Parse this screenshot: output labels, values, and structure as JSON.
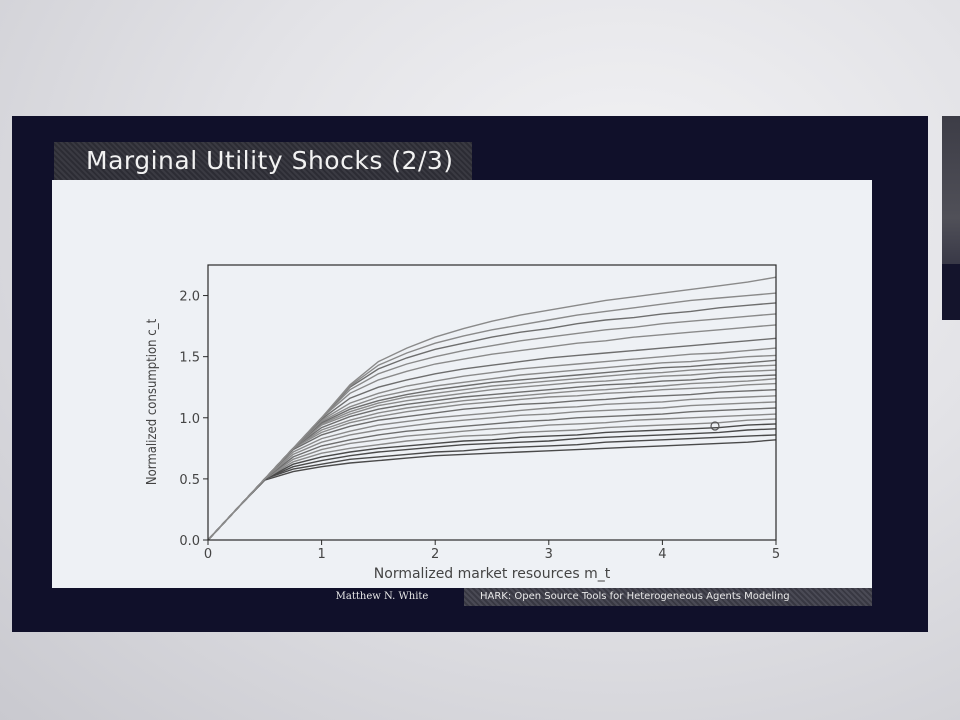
{
  "slide": {
    "title": "Marginal Utility Shocks (2/3)",
    "footer_author": "Matthew N. White",
    "footer_talk": "HARK: Open Source Tools for Heterogeneous Agents Modeling"
  },
  "colors": {
    "slide_background": "#10102a",
    "content_background": "#eef1f5",
    "curve_color": "#7a7a7a",
    "accent_dark": "#2a2a2a"
  },
  "chart_data": {
    "type": "line",
    "title": "",
    "xlabel": "Normalized market resources m_t",
    "ylabel": "Normalized consumption c_t",
    "xlim": [
      0,
      5
    ],
    "ylim": [
      0,
      2.25
    ],
    "xticks": [
      "0",
      "1",
      "2",
      "3",
      "4",
      "5"
    ],
    "yticks": [
      "0.0",
      "0.5",
      "1.0",
      "1.5",
      "2.0"
    ],
    "grid": false,
    "legend": "none",
    "x": [
      0,
      0.25,
      0.5,
      0.75,
      1.0,
      1.25,
      1.5,
      1.75,
      2.0,
      2.25,
      2.5,
      2.75,
      3.0,
      3.25,
      3.5,
      3.75,
      4.0,
      4.25,
      4.5,
      4.75,
      5.0
    ],
    "series": [
      {
        "values": [
          0.0,
          0.25,
          0.49,
          0.56,
          0.6,
          0.63,
          0.65,
          0.67,
          0.69,
          0.7,
          0.71,
          0.72,
          0.73,
          0.74,
          0.75,
          0.76,
          0.77,
          0.78,
          0.79,
          0.8,
          0.82
        ]
      },
      {
        "values": [
          0.0,
          0.25,
          0.5,
          0.58,
          0.62,
          0.66,
          0.68,
          0.7,
          0.72,
          0.73,
          0.75,
          0.76,
          0.77,
          0.78,
          0.8,
          0.81,
          0.82,
          0.83,
          0.84,
          0.85,
          0.86
        ]
      },
      {
        "values": [
          0.0,
          0.25,
          0.5,
          0.6,
          0.65,
          0.69,
          0.72,
          0.74,
          0.76,
          0.78,
          0.79,
          0.8,
          0.81,
          0.83,
          0.84,
          0.85,
          0.86,
          0.87,
          0.88,
          0.9,
          0.91
        ]
      },
      {
        "values": [
          0.0,
          0.25,
          0.5,
          0.62,
          0.68,
          0.72,
          0.75,
          0.77,
          0.79,
          0.81,
          0.82,
          0.84,
          0.85,
          0.86,
          0.88,
          0.89,
          0.9,
          0.91,
          0.92,
          0.94,
          0.95
        ]
      },
      {
        "values": [
          0.0,
          0.25,
          0.5,
          0.64,
          0.71,
          0.75,
          0.78,
          0.81,
          0.83,
          0.85,
          0.86,
          0.88,
          0.89,
          0.9,
          0.92,
          0.93,
          0.94,
          0.95,
          0.96,
          0.98,
          0.99
        ]
      },
      {
        "values": [
          0.0,
          0.25,
          0.5,
          0.66,
          0.74,
          0.79,
          0.82,
          0.85,
          0.87,
          0.89,
          0.91,
          0.92,
          0.94,
          0.95,
          0.96,
          0.98,
          0.99,
          1.0,
          1.01,
          1.02,
          1.03
        ]
      },
      {
        "values": [
          0.0,
          0.25,
          0.5,
          0.68,
          0.77,
          0.82,
          0.86,
          0.89,
          0.91,
          0.93,
          0.95,
          0.97,
          0.98,
          1.0,
          1.01,
          1.02,
          1.03,
          1.05,
          1.06,
          1.07,
          1.08
        ]
      },
      {
        "values": [
          0.0,
          0.25,
          0.5,
          0.7,
          0.8,
          0.86,
          0.9,
          0.93,
          0.96,
          0.98,
          1.0,
          1.02,
          1.03,
          1.05,
          1.06,
          1.07,
          1.08,
          1.1,
          1.11,
          1.12,
          1.13
        ]
      },
      {
        "values": [
          0.0,
          0.25,
          0.5,
          0.72,
          0.83,
          0.89,
          0.94,
          0.97,
          1.0,
          1.02,
          1.04,
          1.06,
          1.08,
          1.09,
          1.11,
          1.12,
          1.13,
          1.15,
          1.16,
          1.17,
          1.18
        ]
      },
      {
        "values": [
          0.0,
          0.25,
          0.5,
          0.74,
          0.86,
          0.93,
          0.98,
          1.01,
          1.04,
          1.07,
          1.09,
          1.11,
          1.12,
          1.14,
          1.15,
          1.17,
          1.18,
          1.19,
          1.21,
          1.22,
          1.23
        ]
      },
      {
        "values": [
          0.0,
          0.25,
          0.5,
          0.75,
          0.88,
          0.96,
          1.01,
          1.05,
          1.08,
          1.11,
          1.13,
          1.15,
          1.17,
          1.18,
          1.2,
          1.21,
          1.23,
          1.24,
          1.25,
          1.27,
          1.28
        ]
      },
      {
        "values": [
          0.0,
          0.25,
          0.5,
          0.75,
          0.9,
          0.98,
          1.04,
          1.08,
          1.11,
          1.14,
          1.16,
          1.18,
          1.2,
          1.22,
          1.23,
          1.25,
          1.26,
          1.28,
          1.29,
          1.3,
          1.32
        ]
      },
      {
        "values": [
          0.0,
          0.25,
          0.5,
          0.75,
          0.92,
          1.01,
          1.07,
          1.11,
          1.14,
          1.17,
          1.19,
          1.21,
          1.23,
          1.25,
          1.27,
          1.28,
          1.3,
          1.31,
          1.33,
          1.34,
          1.35
        ]
      },
      {
        "values": [
          0.0,
          0.25,
          0.5,
          0.75,
          0.94,
          1.03,
          1.1,
          1.14,
          1.17,
          1.2,
          1.23,
          1.25,
          1.27,
          1.29,
          1.3,
          1.32,
          1.34,
          1.35,
          1.37,
          1.38,
          1.39
        ]
      },
      {
        "values": [
          0.0,
          0.25,
          0.5,
          0.75,
          0.95,
          1.05,
          1.12,
          1.17,
          1.2,
          1.23,
          1.26,
          1.28,
          1.3,
          1.32,
          1.34,
          1.36,
          1.37,
          1.39,
          1.4,
          1.42,
          1.43
        ]
      },
      {
        "values": [
          0.0,
          0.25,
          0.5,
          0.75,
          0.96,
          1.07,
          1.14,
          1.19,
          1.23,
          1.26,
          1.29,
          1.31,
          1.33,
          1.35,
          1.37,
          1.39,
          1.41,
          1.42,
          1.44,
          1.45,
          1.47
        ]
      },
      {
        "values": [
          0.0,
          0.25,
          0.5,
          0.75,
          0.97,
          1.09,
          1.17,
          1.22,
          1.26,
          1.29,
          1.32,
          1.35,
          1.37,
          1.39,
          1.41,
          1.43,
          1.45,
          1.46,
          1.48,
          1.5,
          1.51
        ]
      },
      {
        "values": [
          0.0,
          0.25,
          0.5,
          0.75,
          0.98,
          1.12,
          1.2,
          1.26,
          1.3,
          1.34,
          1.37,
          1.4,
          1.42,
          1.44,
          1.46,
          1.48,
          1.5,
          1.52,
          1.53,
          1.55,
          1.57
        ]
      },
      {
        "values": [
          0.0,
          0.25,
          0.5,
          0.75,
          0.99,
          1.16,
          1.25,
          1.31,
          1.36,
          1.4,
          1.43,
          1.46,
          1.49,
          1.51,
          1.53,
          1.55,
          1.57,
          1.59,
          1.61,
          1.63,
          1.65
        ]
      },
      {
        "values": [
          0.0,
          0.25,
          0.5,
          0.75,
          1.0,
          1.2,
          1.31,
          1.38,
          1.44,
          1.48,
          1.52,
          1.55,
          1.58,
          1.61,
          1.63,
          1.66,
          1.68,
          1.7,
          1.72,
          1.74,
          1.76
        ]
      },
      {
        "values": [
          0.0,
          0.25,
          0.5,
          0.75,
          1.0,
          1.23,
          1.36,
          1.44,
          1.5,
          1.55,
          1.59,
          1.63,
          1.66,
          1.69,
          1.72,
          1.74,
          1.77,
          1.79,
          1.81,
          1.83,
          1.85
        ]
      },
      {
        "values": [
          0.0,
          0.25,
          0.5,
          0.75,
          1.0,
          1.25,
          1.4,
          1.49,
          1.56,
          1.61,
          1.66,
          1.7,
          1.73,
          1.77,
          1.8,
          1.82,
          1.85,
          1.87,
          1.9,
          1.92,
          1.94
        ]
      },
      {
        "values": [
          0.0,
          0.25,
          0.5,
          0.75,
          1.0,
          1.26,
          1.43,
          1.53,
          1.61,
          1.67,
          1.72,
          1.76,
          1.8,
          1.84,
          1.87,
          1.9,
          1.93,
          1.96,
          1.98,
          2.0,
          2.02
        ]
      },
      {
        "values": [
          0.0,
          0.25,
          0.5,
          0.75,
          1.0,
          1.27,
          1.46,
          1.57,
          1.66,
          1.73,
          1.79,
          1.84,
          1.88,
          1.92,
          1.96,
          1.99,
          2.02,
          2.05,
          2.08,
          2.11,
          2.15
        ]
      }
    ]
  }
}
